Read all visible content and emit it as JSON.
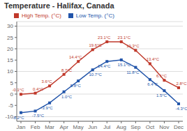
{
  "chart_data": {
    "type": "line",
    "title": "Temperature - Halifax, Canada",
    "categories": [
      "Jan",
      "Feb",
      "Mar",
      "Apr",
      "May",
      "Jun",
      "Jul",
      "Aug",
      "Sep",
      "Oct",
      "Nov",
      "Dec"
    ],
    "series": [
      {
        "name": "High Temp. (°C)",
        "color": "#c0392b",
        "marker": "square",
        "values": [
          -0.1,
          0.4,
          3.6,
          8.7,
          14.4,
          19.6,
          23.1,
          23.1,
          19.3,
          13.4,
          6.1,
          2.8
        ],
        "value_labels": [
          "-0.1°C",
          "0.4°C",
          "3.6°C",
          "8.7°C",
          "14.4°C",
          "19.6°C",
          "23.1°C",
          "23.1°C",
          "19.3°C",
          "13.4°C",
          "6.1°C",
          "2.8°C"
        ]
      },
      {
        "name": "Low Temp. (°C)",
        "color": "#2255aa",
        "marker": "square",
        "values": [
          -8.2,
          -7.5,
          -3.9,
          1.0,
          5.8,
          10.7,
          14.4,
          15.1,
          11.8,
          6.4,
          1.5,
          -4.3
        ],
        "value_labels": [
          "-8.2°C",
          "-7.5°C",
          "-3.9°C",
          "1.0°C",
          "5.8°C",
          "10.7°C",
          "14.4°C",
          "15.1°C",
          "11.8°C",
          "6.4°C",
          "1.5°C",
          "-4.3°C"
        ]
      }
    ],
    "ylim": [
      -12,
      32
    ],
    "yticks": [
      -10,
      -5,
      0,
      5,
      10,
      15,
      20,
      25,
      30
    ],
    "grid": true,
    "legend": "upper left",
    "data_labels": true
  }
}
